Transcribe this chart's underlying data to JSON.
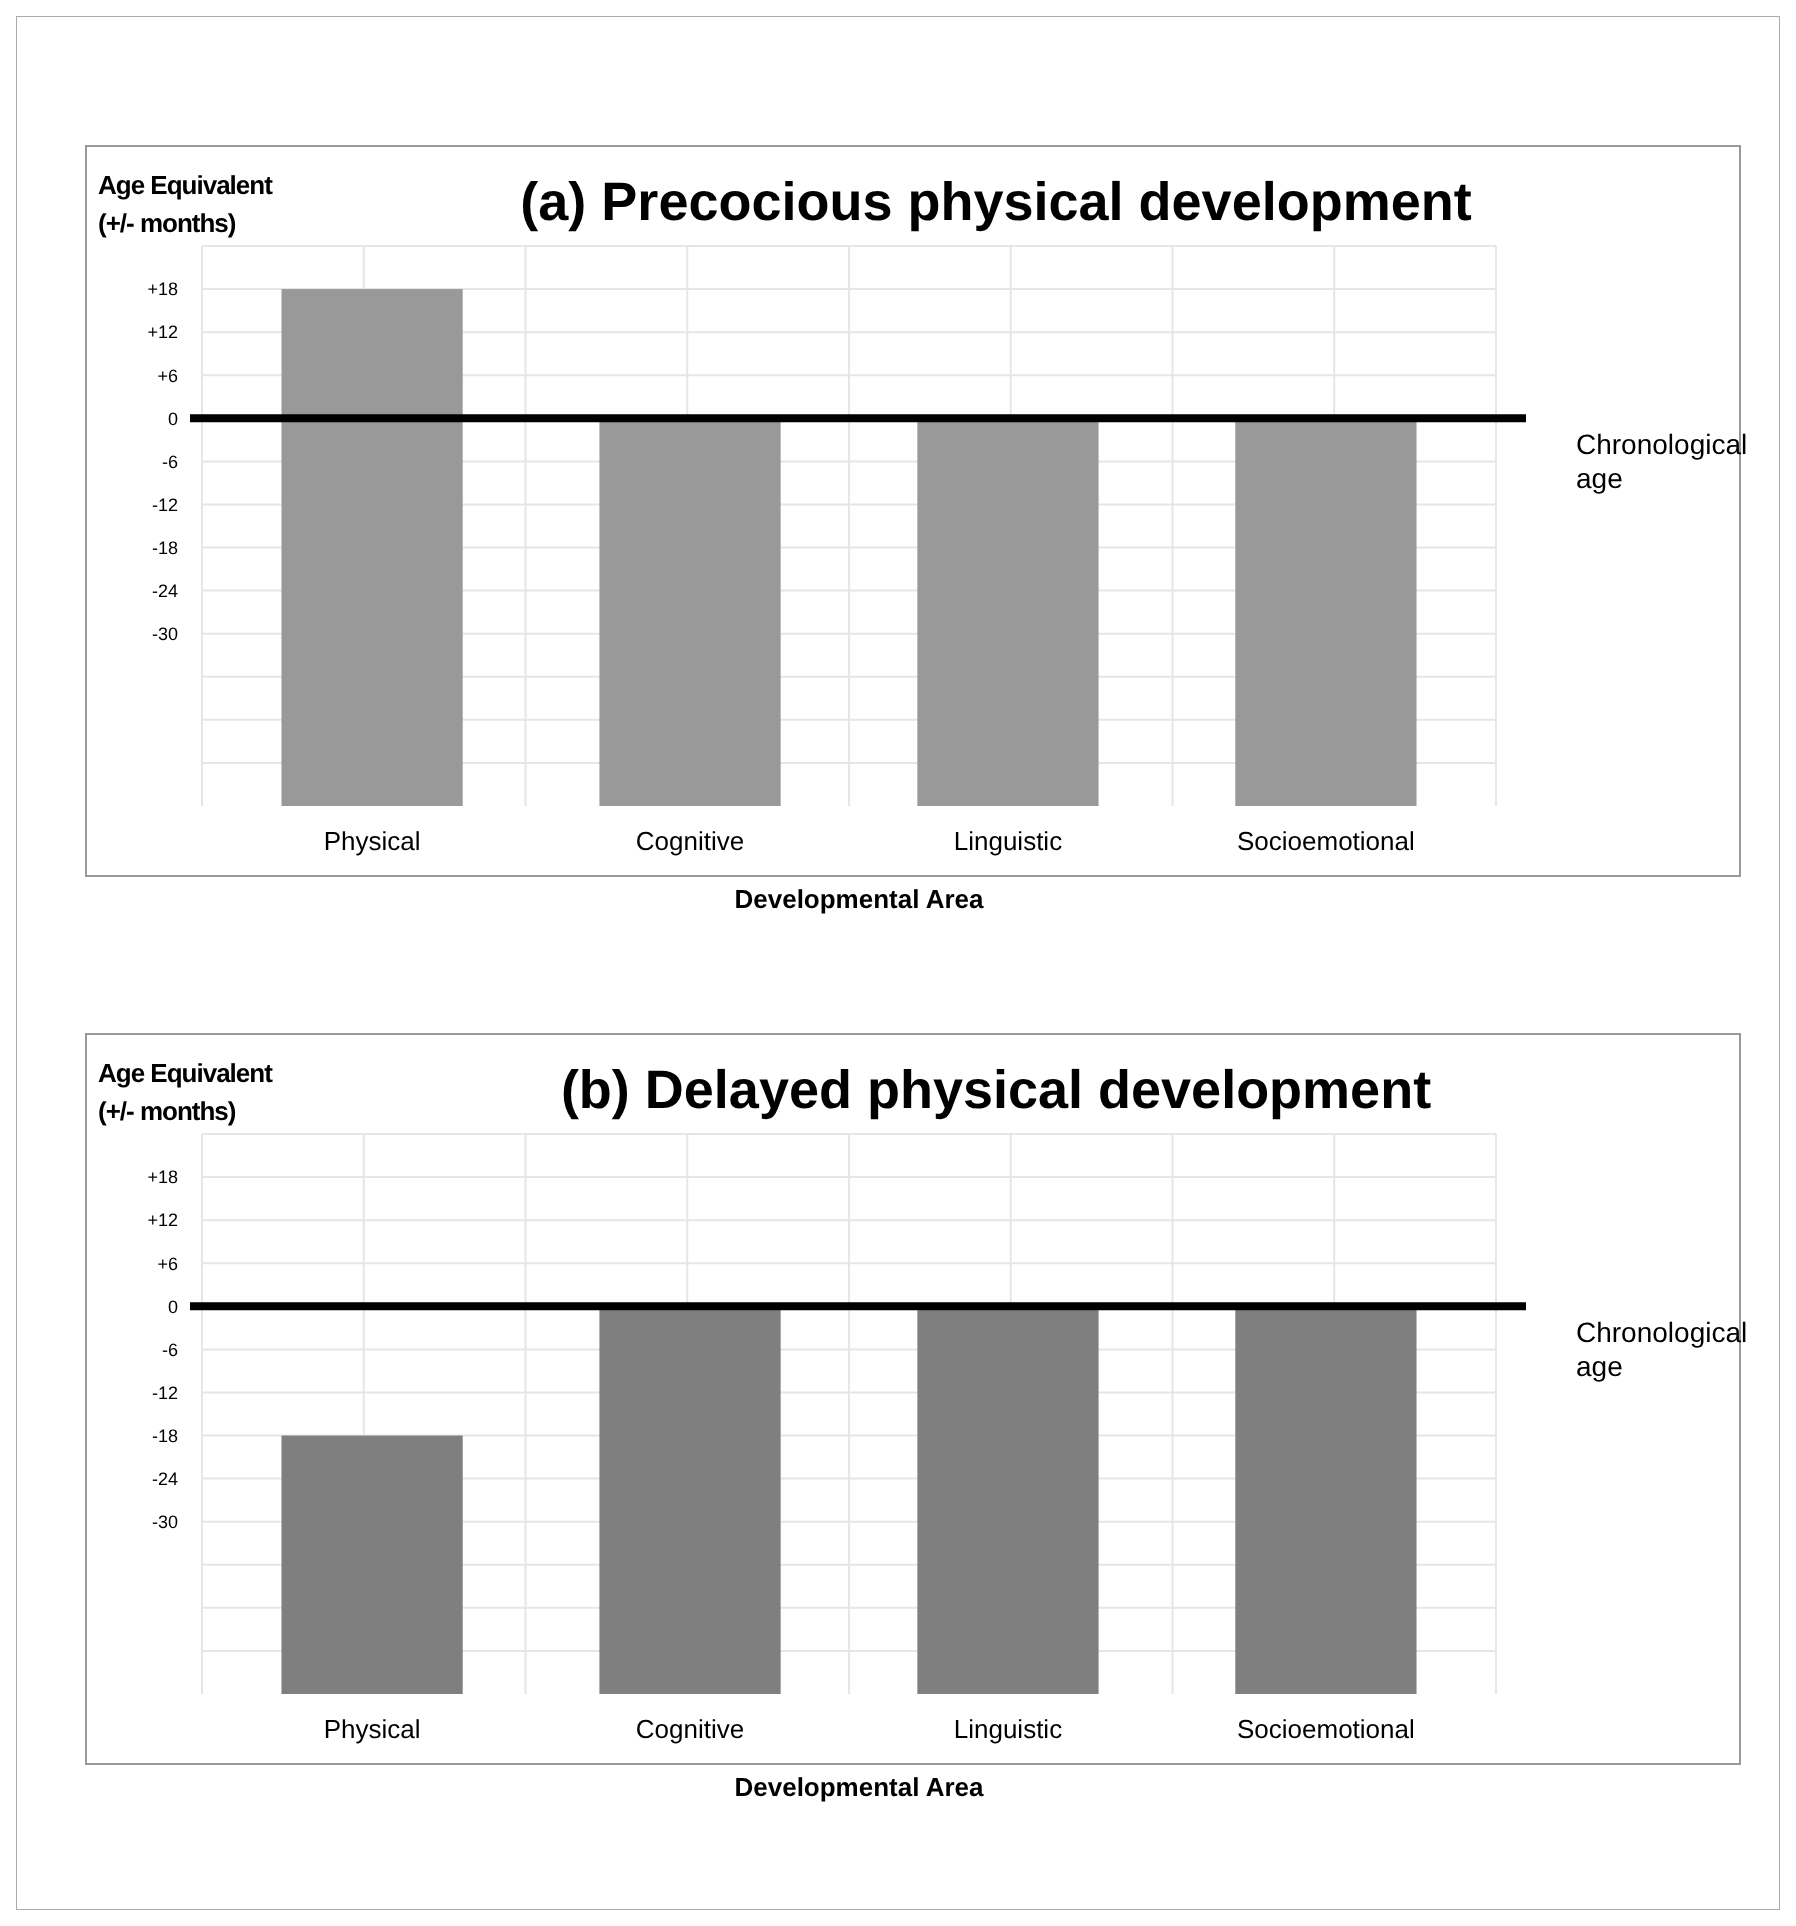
{
  "chart_data": [
    {
      "type": "bar",
      "title": "(a) Precocious physical development",
      "xlabel": "Developmental Area",
      "ylabel": "Age Equivalent (+/- months)",
      "categories": [
        "Physical",
        "Cognitive",
        "Linguistic",
        "Socioemotional"
      ],
      "base": [
        -54,
        -54,
        -54,
        -54
      ],
      "values": [
        72,
        54,
        54,
        54
      ],
      "color": "#999999",
      "ylim": [
        -54,
        24
      ],
      "yticks": [
        {
          "value": 24,
          "label": null
        },
        {
          "value": 18,
          "label": "+18"
        },
        {
          "value": 12,
          "label": "+12"
        },
        {
          "value": 6,
          "label": "+6"
        },
        0,
        -6,
        -12,
        -18,
        -24,
        -30,
        {
          "value": -36,
          "label": null
        },
        {
          "value": -42,
          "label": null
        },
        {
          "value": -48,
          "label": null
        }
      ],
      "grid": true,
      "ref_lines": [
        {
          "axis": "y",
          "value": 0,
          "label": "Chronological age",
          "color": "#000000"
        }
      ]
    },
    {
      "type": "bar",
      "title": "(b) Delayed physical development",
      "xlabel": "Developmental Area",
      "ylabel": "Age Equivalent (+/- months)",
      "categories": [
        "Physical",
        "Cognitive",
        "Linguistic",
        "Socioemotional"
      ],
      "base": [
        -54,
        -54,
        -54,
        -54
      ],
      "values": [
        36,
        54,
        54,
        54
      ],
      "color": "#7f7f7f",
      "ylim": [
        -54,
        24
      ],
      "yticks": [
        {
          "value": 24,
          "label": null
        },
        {
          "value": 18,
          "label": "+18"
        },
        {
          "value": 12,
          "label": "+12"
        },
        {
          "value": 6,
          "label": "+6"
        },
        0,
        -6,
        -12,
        -18,
        -24,
        -30,
        {
          "value": -36,
          "label": null
        },
        {
          "value": -42,
          "label": null
        },
        {
          "value": -48,
          "label": null
        }
      ],
      "grid": true,
      "ref_lines": [
        {
          "axis": "y",
          "value": 0,
          "label": "Chronological age",
          "color": "#000000"
        }
      ]
    }
  ]
}
